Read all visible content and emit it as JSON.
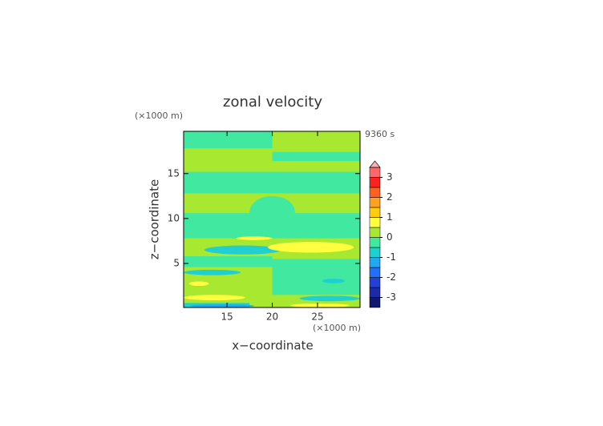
{
  "chart_data": {
    "type": "contour",
    "title": "zonal velocity",
    "xlabel": "x−coordinate",
    "ylabel": "z−coordinate",
    "xunit": "(×1000 m)",
    "yunit": "(×1000 m)",
    "time_label": "9360 s",
    "xlim": [
      10.2,
      29.7
    ],
    "ylim": [
      0.1,
      19.7
    ],
    "xticks": [
      15,
      20,
      25
    ],
    "yticks": [
      5,
      10,
      15
    ],
    "levels": [
      -3.5,
      -3,
      -2.5,
      -2,
      -1.5,
      -1,
      -0.5,
      0,
      0.5,
      1,
      1.5,
      2,
      2.5,
      3,
      3.5
    ],
    "colors": [
      "#101870",
      "#1a2aa8",
      "#2040d8",
      "#2070ff",
      "#20a8f0",
      "#20d0d0",
      "#40e8a0",
      "#a8e830",
      "#ffff40",
      "#ffcc10",
      "#ffa020",
      "#ff6020",
      "#ff2020",
      "#ff6868",
      "#ffb0b0"
    ],
    "extend": "max",
    "cbar_ticks": [
      -3,
      -2,
      -1,
      0,
      1,
      2,
      3
    ],
    "background": 0.25,
    "regions": [
      {
        "shape": "rect",
        "value": -0.25,
        "x": [
          10.2,
          20
        ],
        "y": [
          17.8,
          19.7
        ]
      },
      {
        "shape": "rect",
        "value": -0.25,
        "x": [
          20,
          29.7
        ],
        "y": [
          16.4,
          17.4
        ]
      },
      {
        "shape": "rect",
        "value": -0.25,
        "x": [
          10.2,
          29.7
        ],
        "y": [
          12.8,
          15.2
        ]
      },
      {
        "shape": "rect",
        "value": -0.25,
        "x": [
          10.2,
          29.7
        ],
        "y": [
          7.8,
          10.6
        ]
      },
      {
        "shape": "ellipse",
        "value": -0.25,
        "x": [
          17.5,
          22.5
        ],
        "y": [
          9,
          12.5
        ]
      },
      {
        "shape": "rect",
        "value": -0.25,
        "x": [
          20,
          29.7
        ],
        "y": [
          1.5,
          5.5
        ]
      },
      {
        "shape": "rect",
        "value": -0.25,
        "x": [
          10.2,
          20
        ],
        "y": [
          4.6,
          5.8
        ]
      },
      {
        "shape": "ellipse",
        "value": -0.75,
        "x": [
          12.5,
          21
        ],
        "y": [
          6.0,
          7.0
        ]
      },
      {
        "shape": "ellipse",
        "value": 0.75,
        "x": [
          19.5,
          29
        ],
        "y": [
          6.2,
          7.4
        ]
      },
      {
        "shape": "ellipse",
        "value": 0.75,
        "x": [
          16,
          20
        ],
        "y": [
          7.6,
          8.0
        ]
      },
      {
        "shape": "ellipse",
        "value": -0.75,
        "x": [
          10.2,
          16.5
        ],
        "y": [
          3.7,
          4.3
        ]
      },
      {
        "shape": "ellipse",
        "value": 0.75,
        "x": [
          10.8,
          13
        ],
        "y": [
          2.5,
          3.0
        ]
      },
      {
        "shape": "ellipse",
        "value": 0.75,
        "x": [
          10.2,
          17
        ],
        "y": [
          0.9,
          1.5
        ]
      },
      {
        "shape": "ellipse",
        "value": -0.75,
        "x": [
          23,
          29.7
        ],
        "y": [
          0.8,
          1.4
        ]
      },
      {
        "shape": "ellipse",
        "value": -0.75,
        "x": [
          25.5,
          28
        ],
        "y": [
          2.8,
          3.3
        ]
      },
      {
        "shape": "rect",
        "value": -0.75,
        "x": [
          10.2,
          17.5
        ],
        "y": [
          0.1,
          0.6
        ]
      },
      {
        "shape": "ellipse",
        "value": -1.25,
        "x": [
          11,
          18
        ],
        "y": [
          0.1,
          0.45
        ]
      },
      {
        "shape": "ellipse",
        "value": 0.75,
        "x": [
          22,
          28.5
        ],
        "y": [
          0.1,
          0.55
        ]
      }
    ]
  }
}
